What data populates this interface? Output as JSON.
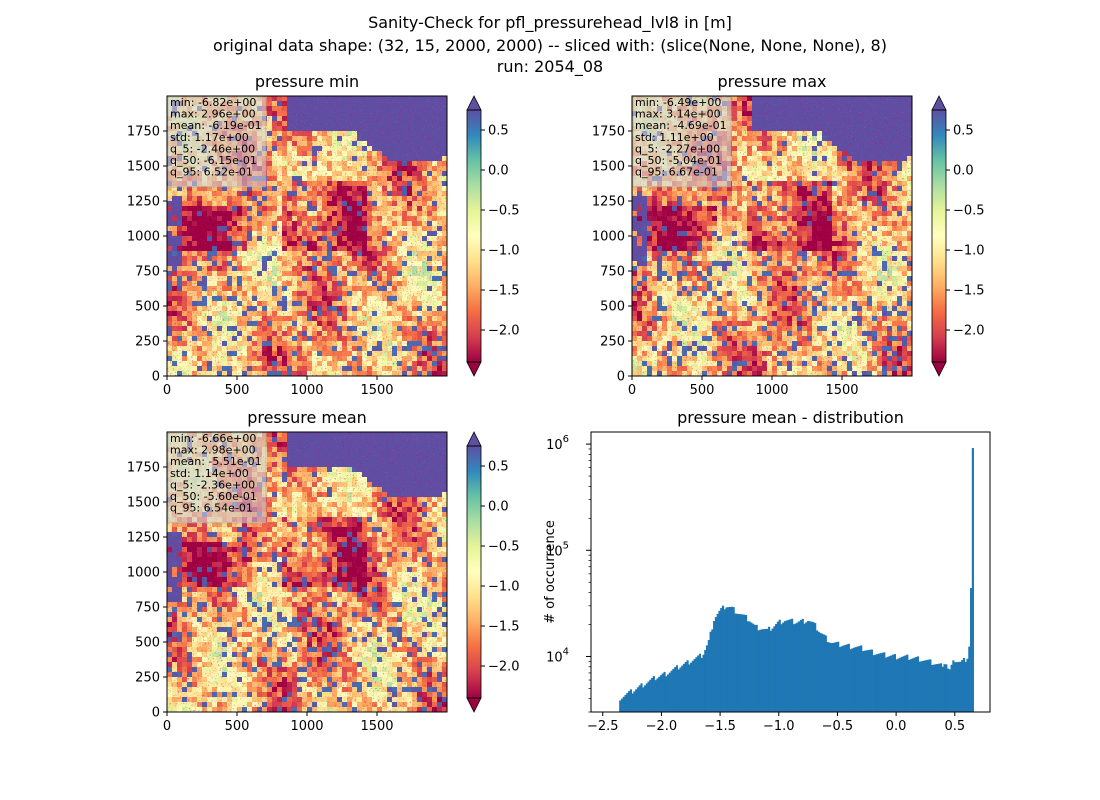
{
  "figure": {
    "title_lines": [
      "Sanity-Check for pfl_pressurehead_lvl8 in [m]",
      "original data shape: (32, 15, 2000, 2000) -- sliced with: (slice(None, None, None), 8)",
      "run: 2054_08"
    ]
  },
  "colors": {
    "bar": "#1f77b4",
    "ocean": "#5e4fa2",
    "colormap": "Spectral",
    "colormap_stops": [
      "#9e0142",
      "#d53e4f",
      "#f46d43",
      "#fdae61",
      "#fee08b",
      "#ffffbf",
      "#e6f598",
      "#abdda4",
      "#66c2a5",
      "#3288bd",
      "#5e4fa2"
    ]
  },
  "chart_data": [
    {
      "type": "heatmap",
      "title": "pressure min",
      "xlim": [
        0,
        2000
      ],
      "ylim": [
        0,
        2000
      ],
      "xticks": [
        "0",
        "500",
        "1000",
        "1500"
      ],
      "yticks": [
        "0",
        "250",
        "500",
        "750",
        "1000",
        "1250",
        "1500",
        "1750"
      ],
      "colorbar": {
        "vmin": -2.4,
        "vmax": 0.75,
        "ticks": [
          "0.5",
          "0.0",
          "−0.5",
          "−1.0",
          "−1.5",
          "−2.0"
        ],
        "extend": "both"
      },
      "stats": [
        "min: -6.82e+00",
        "max: 2.96e+00",
        "mean: -6.19e-01",
        "std: 1.17e+00",
        "q_5: -2.46e+00",
        "q_50: -6.15e-01",
        "q_95: 6.52e-01"
      ]
    },
    {
      "type": "heatmap",
      "title": "pressure max",
      "xlim": [
        0,
        2000
      ],
      "ylim": [
        0,
        2000
      ],
      "xticks": [
        "0",
        "500",
        "1000",
        "1500"
      ],
      "yticks": [
        "0",
        "250",
        "500",
        "750",
        "1000",
        "1250",
        "1500",
        "1750"
      ],
      "colorbar": {
        "vmin": -2.4,
        "vmax": 0.75,
        "ticks": [
          "0.5",
          "0.0",
          "−0.5",
          "−1.0",
          "−1.5",
          "−2.0"
        ],
        "extend": "both"
      },
      "stats": [
        "min: -6.49e+00",
        "max: 3.14e+00",
        "mean: -4.69e-01",
        "std: 1.11e+00",
        "q_5: -2.27e+00",
        "q_50: -5.04e-01",
        "q_95: 6.67e-01"
      ]
    },
    {
      "type": "heatmap",
      "title": "pressure mean",
      "xlim": [
        0,
        2000
      ],
      "ylim": [
        0,
        2000
      ],
      "xticks": [
        "0",
        "500",
        "1000",
        "1500"
      ],
      "yticks": [
        "0",
        "250",
        "500",
        "750",
        "1000",
        "1250",
        "1500",
        "1750"
      ],
      "colorbar": {
        "vmin": -2.4,
        "vmax": 0.75,
        "ticks": [
          "0.5",
          "0.0",
          "−0.5",
          "−1.0",
          "−1.5",
          "−2.0"
        ],
        "extend": "both"
      },
      "stats": [
        "min: -6.66e+00",
        "max: 2.98e+00",
        "mean: -5.51e-01",
        "std: 1.14e+00",
        "q_5: -2.36e+00",
        "q_50: -5.60e-01",
        "q_95: 6.54e-01"
      ]
    },
    {
      "type": "bar",
      "title": "pressure mean - distribution",
      "ylabel": "# of occurrence",
      "yscale": "log",
      "xlim": [
        -2.6,
        0.8
      ],
      "ylim": [
        3000,
        1300000
      ],
      "xticks": [
        "−2.5",
        "−2.0",
        "−1.5",
        "−1.0",
        "−0.5",
        "0.0",
        "0.5"
      ],
      "yticks": [
        "10^4",
        "10^5",
        "10^6"
      ],
      "bin_edges_range": [
        -2.36,
        0.66
      ],
      "x": [
        -2.35,
        -2.25,
        -2.15,
        -2.05,
        -1.95,
        -1.85,
        -1.75,
        -1.65,
        -1.6,
        -1.55,
        -1.5,
        -1.45,
        -1.4,
        -1.35,
        -1.3,
        -1.25,
        -1.2,
        -1.15,
        -1.1,
        -1.05,
        -1.0,
        -0.95,
        -0.9,
        -0.85,
        -0.8,
        -0.75,
        -0.7,
        -0.65,
        -0.6,
        -0.55,
        -0.5,
        -0.45,
        -0.4,
        -0.35,
        -0.3,
        -0.25,
        -0.2,
        -0.1,
        0.0,
        0.1,
        0.2,
        0.3,
        0.38,
        0.42,
        0.45,
        0.5,
        0.55,
        0.6,
        0.62,
        0.64,
        0.65
      ],
      "values": [
        4100,
        4700,
        5500,
        6300,
        7000,
        8000,
        9100,
        10300,
        13500,
        23000,
        27000,
        30000,
        28500,
        26000,
        24000,
        22000,
        19000,
        18500,
        17500,
        19000,
        21000,
        22000,
        21500,
        21000,
        21500,
        22000,
        20000,
        17000,
        15000,
        13500,
        13000,
        12800,
        12500,
        12300,
        12000,
        11500,
        11000,
        10300,
        10000,
        9800,
        9500,
        8800,
        8200,
        9000,
        7200,
        9300,
        8800,
        9600,
        10500,
        55000,
        900000
      ]
    }
  ]
}
